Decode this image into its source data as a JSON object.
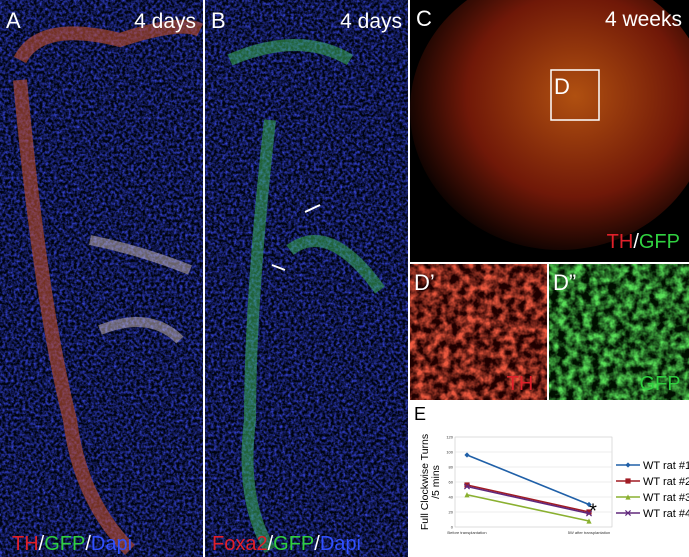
{
  "panels": {
    "a": {
      "letter": "A",
      "time": "4 days",
      "label": [
        "TH",
        "/",
        "GFP",
        "/",
        "Dapi"
      ]
    },
    "b": {
      "letter": "B",
      "time": "4 days",
      "label": [
        "Foxa2",
        "/",
        "GFP",
        "/",
        "Dapi"
      ]
    },
    "c": {
      "letter": "C",
      "time": "4 weeks",
      "inset": "D",
      "label": [
        "TH",
        "/",
        "GFP"
      ]
    },
    "d1": {
      "letter": "D’",
      "label": "TH"
    },
    "d2": {
      "letter": "D”",
      "label": "GFP"
    },
    "e": {
      "letter": "E"
    }
  },
  "chart_data": {
    "type": "line",
    "y_label": [
      "Full Clockwise Turns",
      "/5 mins"
    ],
    "categories": [
      "Before transplantation",
      "5W after transplantation"
    ],
    "series": [
      {
        "name": "WT rat #1",
        "color": "#2060a8",
        "marker": "diamond",
        "values": [
          96,
          30
        ]
      },
      {
        "name": "WT rat #2",
        "color": "#a01c24",
        "marker": "square",
        "values": [
          56,
          20
        ]
      },
      {
        "name": "WT rat #3",
        "color": "#8ab030",
        "marker": "triangle",
        "values": [
          43,
          8
        ]
      },
      {
        "name": "WT rat #4",
        "color": "#60287c",
        "marker": "x",
        "values": [
          54,
          18
        ]
      }
    ],
    "ylim": [
      0,
      120
    ],
    "yticks": [
      0,
      20,
      40,
      60,
      80,
      100,
      120
    ],
    "annotation": "*"
  }
}
